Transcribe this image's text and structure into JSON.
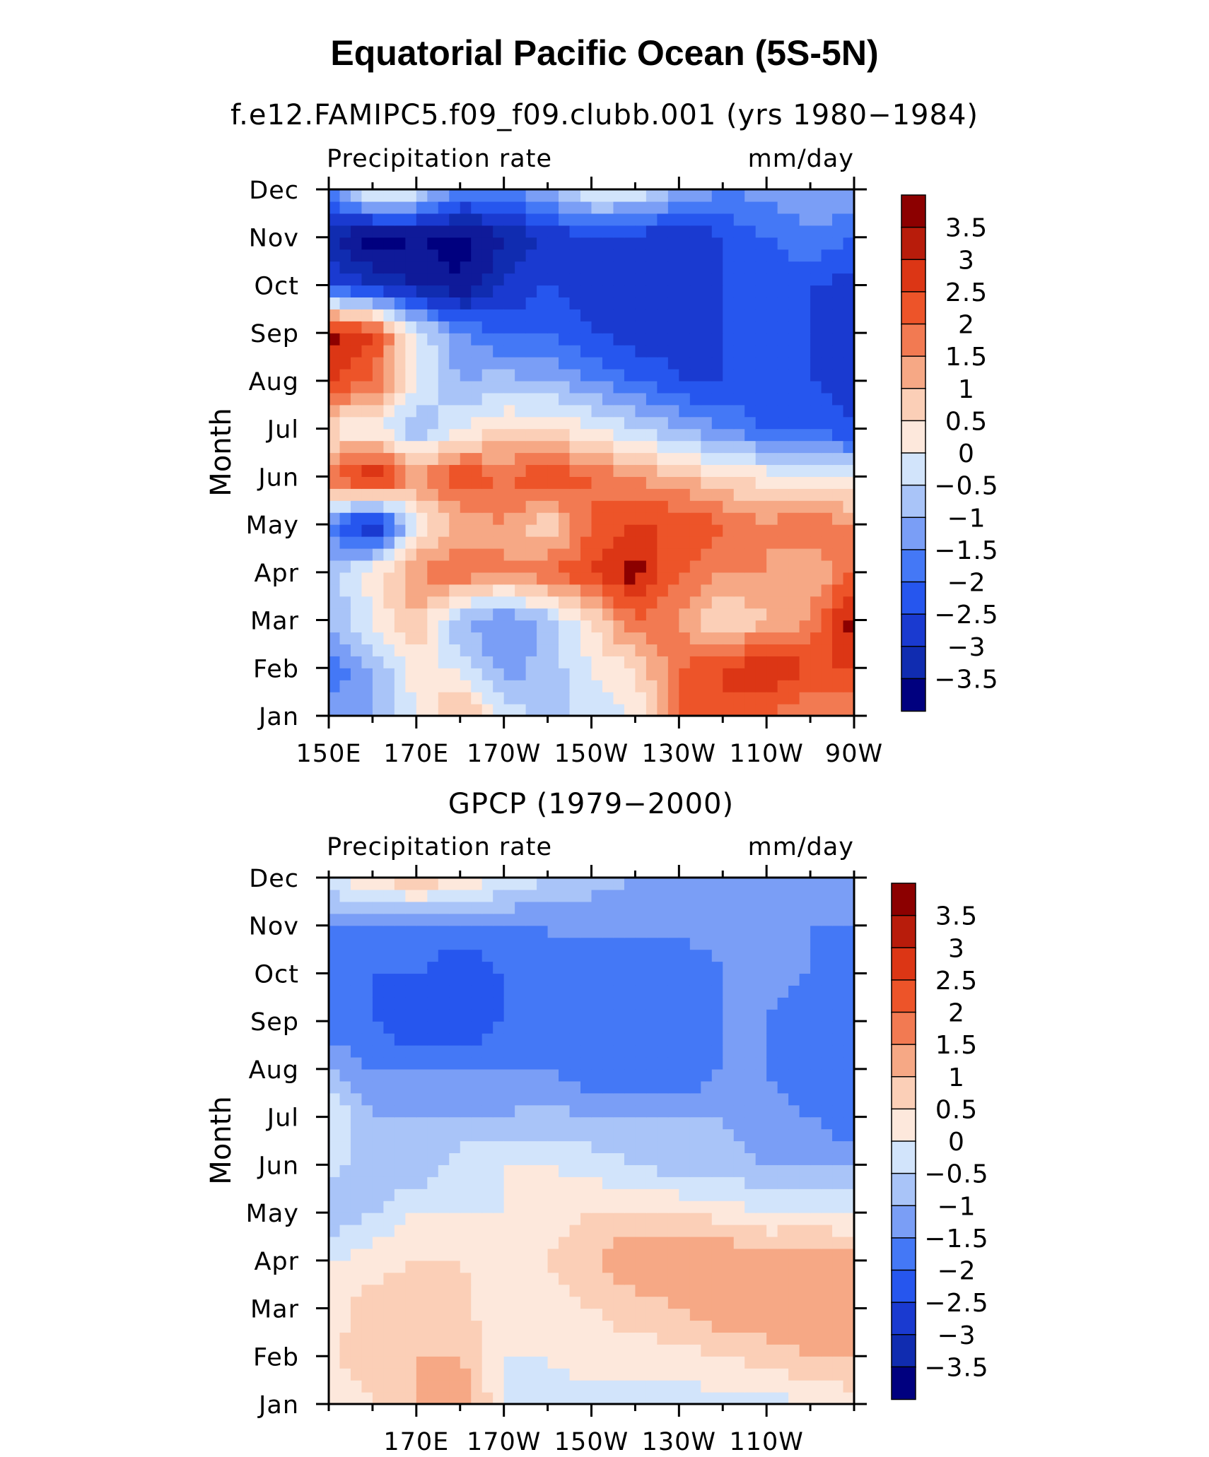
{
  "title": "Equatorial Pacific Ocean (5S-5N)",
  "colors": {
    "scale": [
      "#00007f",
      "#0f1a99",
      "#102cb0",
      "#1a3ad0",
      "#2656ee",
      "#4478f6",
      "#7a9ef6",
      "#a9c4f8",
      "#d2e4fb",
      "#fde8dc",
      "#fbcfb7",
      "#f6a885",
      "#f27a52",
      "#ed5429",
      "#dc3615",
      "#b81c0b",
      "#8c0000"
    ]
  },
  "chart_data": [
    {
      "type": "heatmap",
      "title": "f.e12.FAMIPC5.f09_f09.clubb.001 (yrs 1980−1984)",
      "left_label": "Precipitation rate",
      "right_label": "mm/day",
      "ylabel": "Month",
      "yticks": [
        "Jan",
        "Feb",
        "Mar",
        "Apr",
        "May",
        "Jun",
        "Jul",
        "Aug",
        "Sep",
        "Oct",
        "Nov",
        "Dec"
      ],
      "xticks": [
        "150E",
        "170E",
        "170W",
        "150W",
        "130W",
        "110W",
        "90W"
      ],
      "xlim": [
        150,
        270
      ],
      "colorbar_labels": [
        "3.5",
        "3",
        "2.5",
        "2",
        "1.5",
        "1",
        "0.5",
        "0",
        "−0.5",
        "−1",
        "−1.5",
        "−2",
        "−2.5",
        "−3",
        "−3.5"
      ],
      "x": [
        150,
        160,
        170,
        180,
        190,
        200,
        210,
        220,
        230,
        240,
        250,
        260,
        270
      ],
      "y": [
        "Jan",
        "Feb",
        "Mar",
        "Apr",
        "May",
        "Jun",
        "Jul",
        "Aug",
        "Sep",
        "Oct",
        "Nov",
        "Dec"
      ],
      "z": [
        [
          -0.8,
          -0.5,
          0.5,
          1.8,
          0.5,
          -0.3,
          0.2,
          0.5,
          2.5,
          3.0,
          2.5,
          2.0,
          2.2
        ],
        [
          -1.5,
          -0.5,
          0.8,
          0.3,
          -0.8,
          -0.3,
          0.5,
          1.0,
          2.5,
          3.0,
          3.5,
          3.0,
          3.0
        ],
        [
          -0.5,
          0.5,
          1.5,
          -0.5,
          -1.0,
          -0.3,
          1.0,
          2.5,
          2.0,
          0.8,
          1.5,
          2.0,
          3.8
        ],
        [
          -0.3,
          0.8,
          2.0,
          2.5,
          2.0,
          2.5,
          3.0,
          3.8,
          2.5,
          2.0,
          2.0,
          1.5,
          2.5
        ],
        [
          -1.0,
          -3.0,
          0.5,
          1.5,
          2.0,
          1.0,
          2.5,
          3.0,
          3.0,
          2.5,
          2.0,
          2.5,
          2.0
        ],
        [
          2.5,
          3.8,
          2.0,
          3.0,
          2.5,
          3.0,
          2.5,
          2.0,
          1.5,
          1.0,
          0.8,
          0.5,
          0.5
        ],
        [
          0.8,
          0.5,
          -0.5,
          0.5,
          1.0,
          1.0,
          0.5,
          0,
          -0.5,
          -1.0,
          -1.5,
          -1.5,
          -2.0
        ],
        [
          3.0,
          2.5,
          0.5,
          -0.5,
          -0.3,
          -0.5,
          -1.0,
          -1.5,
          -2.0,
          -2.0,
          -2.0,
          -2.0,
          -2.3
        ],
        [
          3.8,
          3.0,
          0.5,
          -1.0,
          -1.5,
          -1.5,
          -2.0,
          -2.3,
          -2.3,
          -2.0,
          -2.0,
          -2.0,
          -2.3
        ],
        [
          -2.0,
          -2.5,
          -3.0,
          -3.5,
          -2.5,
          -2.0,
          -2.3,
          -2.3,
          -2.3,
          -2.0,
          -2.0,
          -2.0,
          -2.3
        ],
        [
          -3.0,
          -3.8,
          -3.5,
          -3.8,
          -3.0,
          -2.5,
          -2.0,
          -2.3,
          -2.5,
          -2.0,
          -1.5,
          -1.0,
          -1.5
        ],
        [
          -1.0,
          1.0,
          0.5,
          -1.0,
          -1.0,
          -0.5,
          0.5,
          0.5,
          -0.5,
          -1.0,
          -0.8,
          -0.8,
          -0.5
        ]
      ]
    },
    {
      "type": "heatmap",
      "title": "GPCP (1979−2000)",
      "left_label": "Precipitation rate",
      "right_label": "mm/day",
      "ylabel": "Month",
      "yticks": [
        "Jan",
        "Feb",
        "Mar",
        "Apr",
        "May",
        "Jun",
        "Jul",
        "Aug",
        "Sep",
        "Oct",
        "Nov",
        "Dec"
      ],
      "xticks": [
        "170E",
        "170W",
        "150W",
        "130W",
        "110W"
      ],
      "xlim": [
        150,
        270
      ],
      "colorbar_labels": [
        "3.5",
        "3",
        "2.5",
        "2",
        "1.5",
        "1",
        "0.5",
        "0",
        "−0.5",
        "−1",
        "−1.5",
        "−2",
        "−2.5",
        "−3",
        "−3.5"
      ],
      "x": [
        150,
        160,
        170,
        180,
        190,
        200,
        210,
        220,
        230,
        240,
        250,
        260,
        270
      ],
      "y": [
        "Jan",
        "Feb",
        "Mar",
        "Apr",
        "May",
        "Jun",
        "Jul",
        "Aug",
        "Sep",
        "Oct",
        "Nov",
        "Dec"
      ],
      "z": [
        [
          0.5,
          1.0,
          1.5,
          2.0,
          0.5,
          0.3,
          0.3,
          0.3,
          0.2,
          0.3,
          0.3,
          0.5,
          0.8
        ],
        [
          0.8,
          1.5,
          1.5,
          1.5,
          0.5,
          0.5,
          0.8,
          0.8,
          0.8,
          1.0,
          1.2,
          1.5,
          1.5
        ],
        [
          0.8,
          1.2,
          1.5,
          1.2,
          0.5,
          0.8,
          1.0,
          1.2,
          1.5,
          2.0,
          2.0,
          1.8,
          2.0
        ],
        [
          0.5,
          0.8,
          1.0,
          1.0,
          0.8,
          1.0,
          1.5,
          2.0,
          2.0,
          2.0,
          1.8,
          2.0,
          2.0
        ],
        [
          -0.5,
          0,
          0.5,
          0.5,
          0.5,
          0.8,
          1.0,
          1.0,
          1.0,
          0.8,
          0.5,
          0.5,
          0.3
        ],
        [
          0.3,
          -0.5,
          -0.5,
          0.3,
          0.5,
          0.5,
          0.3,
          0,
          -0.3,
          -0.3,
          -0.5,
          -0.5,
          -0.5
        ],
        [
          0.5,
          -0.5,
          -0.5,
          -0.5,
          -0.5,
          -0.3,
          -0.5,
          -0.5,
          -0.5,
          -0.5,
          -0.8,
          -1.0,
          -1.5
        ],
        [
          -0.5,
          -1.0,
          -1.0,
          -1.0,
          -1.0,
          -1.0,
          -1.5,
          -1.5,
          -1.5,
          -1.0,
          -1.0,
          -1.5,
          -1.5
        ],
        [
          -1.5,
          -1.5,
          -2.0,
          -2.0,
          -1.5,
          -1.0,
          -1.5,
          -1.5,
          -1.5,
          -1.0,
          -1.0,
          -1.5,
          -1.5
        ],
        [
          -1.0,
          -1.5,
          -1.5,
          -2.0,
          -1.5,
          -1.0,
          -1.5,
          -1.5,
          -1.5,
          -1.0,
          -0.8,
          -1.0,
          -1.5
        ],
        [
          -1.0,
          -1.0,
          -1.0,
          -1.0,
          -1.0,
          -1.0,
          -0.8,
          -0.8,
          -0.8,
          -0.8,
          -0.8,
          -1.0,
          -1.0
        ],
        [
          0.5,
          1.0,
          1.5,
          1.0,
          0.5,
          0,
          -0.3,
          -0.5,
          -0.5,
          -0.5,
          -0.5,
          -0.5,
          -0.5
        ]
      ]
    }
  ]
}
